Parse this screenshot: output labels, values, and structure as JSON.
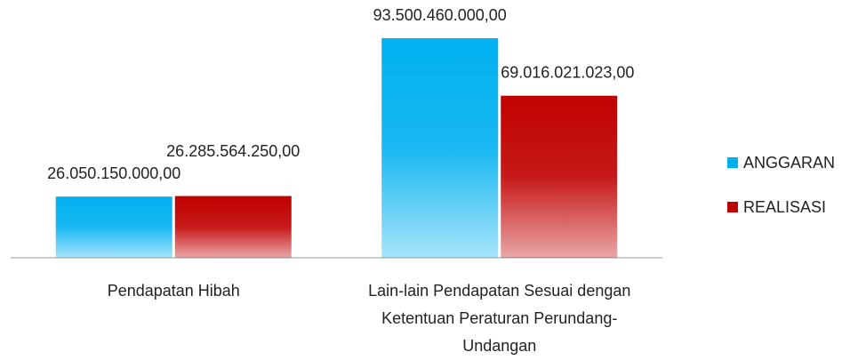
{
  "chart_data": {
    "type": "bar",
    "categories": [
      "Pendapatan Hibah",
      "Lain-lain Pendapatan Sesuai dengan Ketentuan Peraturan Perundang-Undangan"
    ],
    "series": [
      {
        "name": "ANGGARAN",
        "color": "#00b0f0",
        "values": [
          26050150000,
          93500460000
        ],
        "value_labels": [
          "26.050.150.000,00",
          "93.500.460.000,00"
        ]
      },
      {
        "name": "REALISASI",
        "color": "#c00000",
        "values": [
          26285564250,
          69016021023
        ],
        "value_labels": [
          "26.285.564.250,00",
          "69.016.021.023,00"
        ]
      }
    ],
    "legend": "right"
  }
}
